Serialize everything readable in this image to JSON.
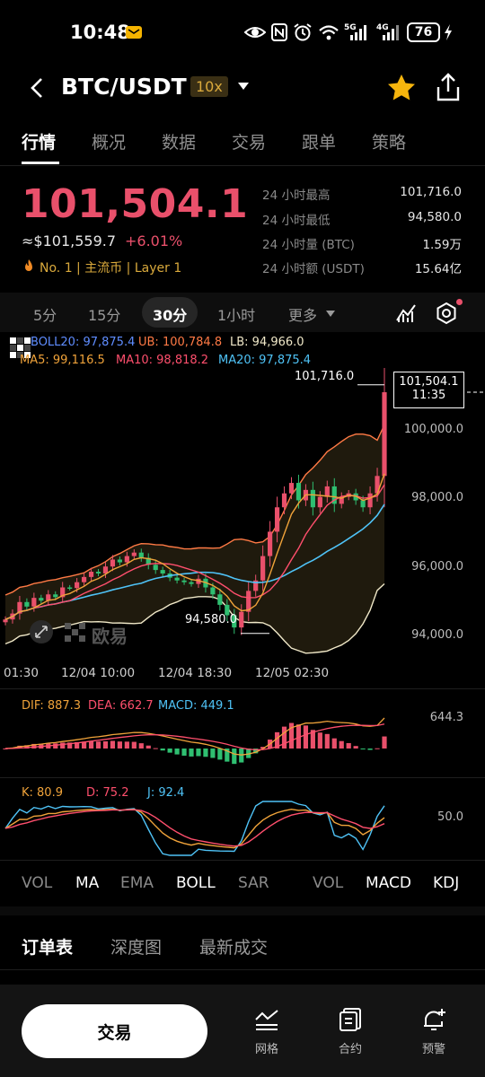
{
  "status_bar": {
    "time": "10:48",
    "signal_4g": "4G",
    "signal_5g": "5G",
    "battery": "76"
  },
  "header": {
    "pair": "BTC/USDT",
    "leverage": "10x"
  },
  "tabs": [
    {
      "label": "行情"
    },
    {
      "label": "概况"
    },
    {
      "label": "数据"
    },
    {
      "label": "交易"
    },
    {
      "label": "跟单"
    },
    {
      "label": "策略"
    }
  ],
  "price": {
    "last": "101,504.1",
    "usd": "≈$101,559.7",
    "change": "+6.01%",
    "tags": "No. 1 | 主流币 | Layer 1"
  },
  "stats": [
    {
      "label": "24 小时最高",
      "value": "101,716.0"
    },
    {
      "label": "24 小时最低",
      "value": "94,580.0"
    },
    {
      "label": "24 小时量 (BTC)",
      "value": "1.59万"
    },
    {
      "label": "24 小时额 (USDT)",
      "value": "15.64亿"
    }
  ],
  "intervals": {
    "i5": "5分",
    "i15": "15分",
    "i30": "30分",
    "i1h": "1小时",
    "more": "更多"
  },
  "legends": {
    "boll": {
      "boll": "BOLL20: 97,875.4",
      "ub": "UB: 100,784.8",
      "lb": "LB: 94,966.0"
    },
    "ma": {
      "ma5": "MA5: 99,116.5",
      "ma10": "MA10: 98,818.2",
      "ma20": "MA20: 97,875.4"
    },
    "macd": {
      "dif": "DIF: 887.3",
      "dea": "DEA: 662.7",
      "macd": "MACD: 449.1"
    },
    "kdj": {
      "k": "K: 80.9",
      "d": "D: 75.2",
      "j": "J: 92.4"
    }
  },
  "chart_annotations": {
    "high": "101,716.0",
    "low": "94,580.0",
    "current_price": "101,504.1",
    "current_time": "11:35",
    "watermark": "欧易"
  },
  "price_axis": [
    "100,000.0",
    "98,000.0",
    "96,000.0",
    "94,000.0"
  ],
  "time_axis": [
    "01:30",
    "12/04 10:00",
    "12/04 18:30",
    "12/05 02:30"
  ],
  "macd_axis": "644.3",
  "kdj_axis": "50.0",
  "indicator_tabs": {
    "vol": "VOL",
    "ma": "MA",
    "ema": "EMA",
    "boll": "BOLL",
    "sar": "SAR",
    "vol2": "VOL",
    "macd": "MACD",
    "kdj": "KDJ"
  },
  "order_tabs": [
    "订单表",
    "深度图",
    "最新成交"
  ],
  "bottom_nav": {
    "trade": "交易",
    "grid": "网格",
    "contract": "合约",
    "alert": "预警"
  },
  "colors": {
    "up": "#e9506b",
    "down": "#2fbf71",
    "accent_gold": "#d9a93c",
    "ma5": "#f0a33a",
    "ma10": "#ff4f6d",
    "ma20": "#4fc3f7"
  },
  "chart_data": {
    "type": "line",
    "title": "",
    "price_range": [
      93800,
      102200
    ],
    "close": [
      94980,
      95150,
      95480,
      95350,
      95600,
      95520,
      95700,
      95620,
      95900,
      95880,
      96050,
      96200,
      96350,
      96300,
      96500,
      96700,
      96620,
      96800,
      96900,
      96750,
      96550,
      96400,
      96300,
      96180,
      96100,
      96050,
      96000,
      96150,
      95900,
      95700,
      95400,
      95100,
      94750,
      95200,
      95800,
      96100,
      96800,
      97500,
      98200,
      98600,
      98900,
      98400,
      98700,
      98200,
      98500,
      98800,
      98300,
      98500,
      98600,
      98400,
      98200,
      98600,
      99100,
      101504
    ]
  }
}
